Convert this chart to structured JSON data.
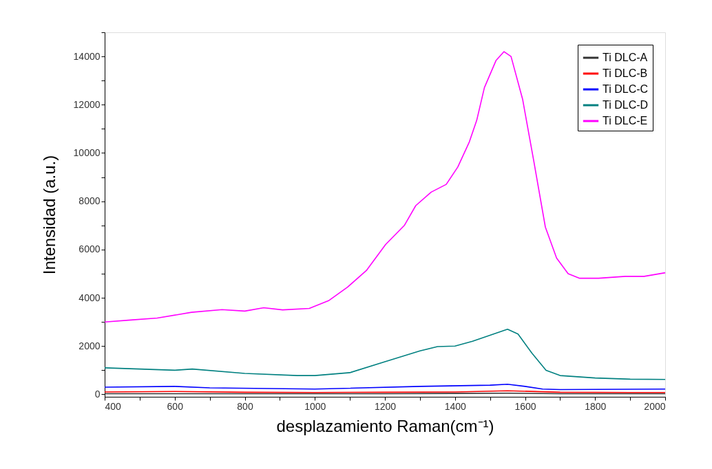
{
  "chart_data": {
    "type": "line",
    "xlabel": "desplazamiento Raman(cm⁻¹)",
    "ylabel": "Intensidad (a.u.)",
    "xlim": [
      400,
      2000
    ],
    "ylim": [
      -100,
      15000
    ],
    "xticks": [
      400,
      {
        "value": 500,
        "label": null
      },
      600,
      {
        "value": 700,
        "label": null
      },
      800,
      {
        "value": 900,
        "label": null
      },
      1000,
      {
        "value": 1100,
        "label": null
      },
      1200,
      {
        "value": 1300,
        "label": null
      },
      1400,
      {
        "value": 1500,
        "label": null
      },
      1600,
      {
        "value": 1700,
        "label": null
      },
      1800,
      {
        "value": 1900,
        "label": null
      },
      2000
    ],
    "yticks": [
      0,
      {
        "value": 1000,
        "label": null
      },
      2000,
      {
        "value": 3000,
        "label": null
      },
      4000,
      {
        "value": 5000,
        "label": null
      },
      6000,
      {
        "value": 7000,
        "label": null
      },
      8000,
      {
        "value": 9000,
        "label": null
      },
      10000,
      {
        "value": 11000,
        "label": null
      },
      12000,
      {
        "value": 13000,
        "label": null
      },
      14000,
      {
        "value": 15000,
        "label": null
      }
    ],
    "legend": "top right",
    "series": [
      {
        "name": "Ti DLC-A",
        "color": "#333333",
        "x": [
          400,
          600,
          800,
          1000,
          1200,
          1400,
          1550,
          1700,
          1900,
          2000
        ],
        "values": [
          30,
          30,
          30,
          30,
          30,
          40,
          50,
          30,
          30,
          30
        ]
      },
      {
        "name": "Ti DLC-B",
        "color": "#ff0000",
        "x": [
          400,
          600,
          800,
          1000,
          1200,
          1400,
          1550,
          1700,
          1900,
          2000
        ],
        "values": [
          100,
          120,
          90,
          80,
          90,
          100,
          150,
          90,
          80,
          80
        ]
      },
      {
        "name": "Ti DLC-C",
        "color": "#0000ff",
        "x": [
          400,
          600,
          700,
          1000,
          1300,
          1500,
          1550,
          1600,
          1650,
          1700,
          2000
        ],
        "values": [
          300,
          330,
          270,
          220,
          330,
          380,
          420,
          330,
          220,
          200,
          220
        ]
      },
      {
        "name": "Ti DLC-D",
        "color": "#008080",
        "x": [
          400,
          600,
          650,
          800,
          950,
          1000,
          1100,
          1200,
          1300,
          1350,
          1400,
          1450,
          1500,
          1550,
          1580,
          1620,
          1660,
          1700,
          1800,
          1900,
          2000
        ],
        "values": [
          1100,
          1000,
          1050,
          870,
          780,
          780,
          900,
          1350,
          1800,
          1980,
          2000,
          2200,
          2450,
          2700,
          2500,
          1700,
          1000,
          780,
          680,
          630,
          620
        ]
      },
      {
        "name": "Ti DLC-E",
        "color": "#ff00ff",
        "x": [
          400,
          474,
          550,
          648,
          735,
          800,
          854,
          908,
          984,
          1039,
          1093,
          1147,
          1202,
          1256,
          1288,
          1332,
          1375,
          1408,
          1441,
          1462,
          1484,
          1517,
          1540,
          1560,
          1593,
          1625,
          1658,
          1690,
          1723,
          1756,
          1810,
          1886,
          1940,
          2000
        ],
        "values": [
          3000,
          3080,
          3160,
          3400,
          3510,
          3450,
          3590,
          3500,
          3560,
          3880,
          4440,
          5130,
          6210,
          7010,
          7820,
          8380,
          8700,
          9420,
          10460,
          11350,
          12710,
          13830,
          14200,
          14000,
          12230,
          9660,
          6930,
          5650,
          5000,
          4810,
          4810,
          4890,
          4890,
          5040
        ]
      }
    ]
  }
}
